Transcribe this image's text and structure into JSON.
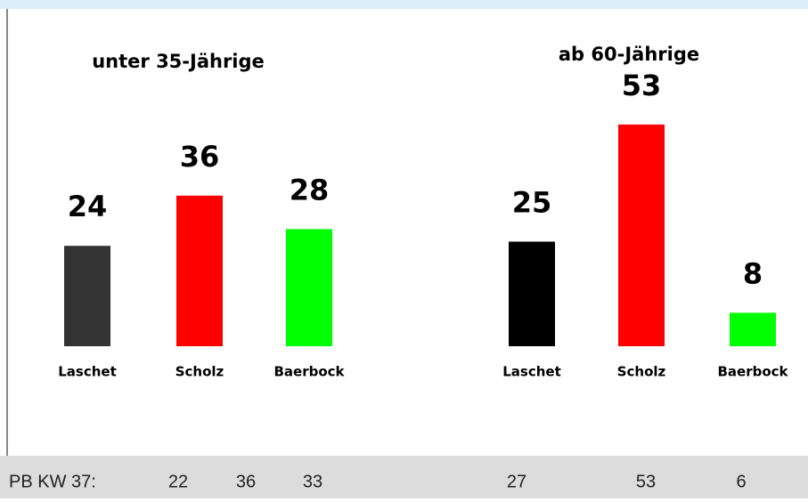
{
  "chart_data": [
    {
      "type": "bar",
      "title": "unter 35-Jährige",
      "categories": [
        "Laschet",
        "Scholz",
        "Baerbock"
      ],
      "values": [
        24,
        36,
        28
      ],
      "colors": [
        "#333333",
        "#ff0000",
        "#00ff00"
      ]
    },
    {
      "type": "bar",
      "title": "ab 60-Jährige",
      "categories": [
        "Laschet",
        "Scholz",
        "Baerbock"
      ],
      "values": [
        25,
        53,
        8
      ],
      "colors": [
        "#000000",
        "#ff0000",
        "#00ff00"
      ]
    }
  ],
  "footer": {
    "label": "PB KW 37:",
    "values": [
      [
        22,
        36,
        33
      ],
      [
        27,
        53,
        6
      ]
    ]
  }
}
